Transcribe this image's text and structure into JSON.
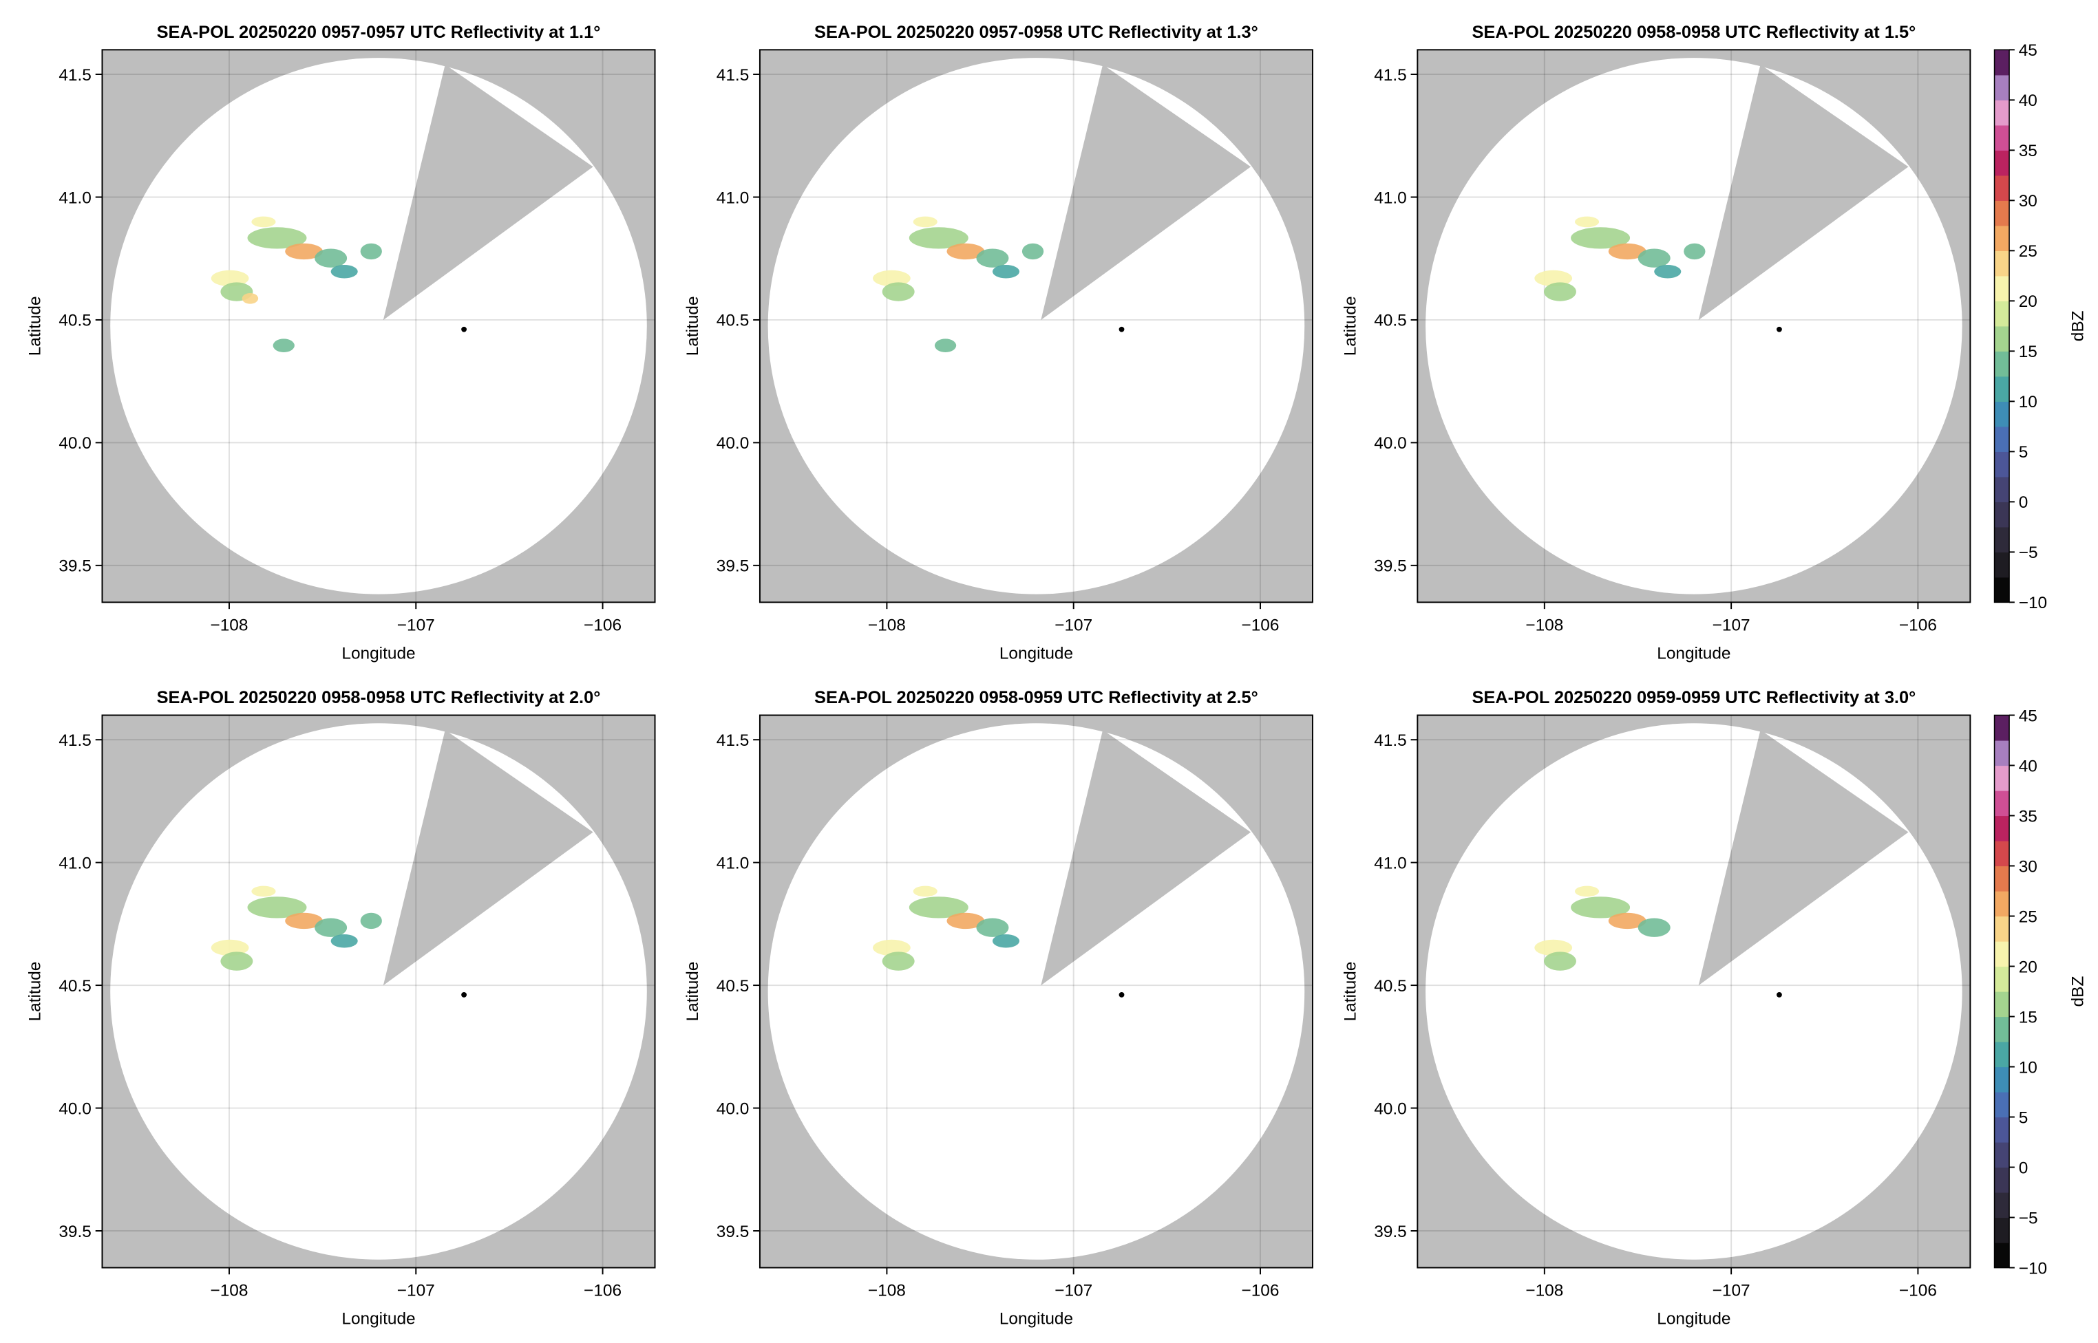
{
  "chart_data": [
    {
      "type": "radar",
      "title": "SEA-POL 20250220 0957-0957 UTC Reflectivity at 1.1°",
      "xlabel": "Longitude",
      "ylabel": "Latitude",
      "xlim": [
        -108.68,
        -105.72
      ],
      "ylim": [
        39.35,
        41.6
      ],
      "xticks": [
        {
          "value": -108,
          "label": "−108"
        },
        {
          "value": -107,
          "label": "−107"
        },
        {
          "value": -106,
          "label": "−106"
        }
      ],
      "yticks": [
        39.5,
        {
          "value": 40,
          "label": "40.0"
        },
        40.5,
        {
          "value": 41,
          "label": "41.0"
        },
        41.5
      ],
      "grid": true
    },
    {
      "type": "radar",
      "title": "SEA-POL 20250220 0957-0958 UTC Reflectivity at 1.3°",
      "xlabel": "Longitude",
      "ylabel": "Latitude",
      "xlim": [
        -108.68,
        -105.72
      ],
      "ylim": [
        39.35,
        41.6
      ],
      "xticks": [
        {
          "value": -108,
          "label": "−108"
        },
        {
          "value": -107,
          "label": "−107"
        },
        {
          "value": -106,
          "label": "−106"
        }
      ],
      "yticks": [
        39.5,
        {
          "value": 40,
          "label": "40.0"
        },
        40.5,
        {
          "value": 41,
          "label": "41.0"
        },
        41.5
      ],
      "grid": true
    },
    {
      "type": "radar",
      "title": "SEA-POL 20250220 0958-0958 UTC Reflectivity at 1.5°",
      "xlabel": "Longitude",
      "ylabel": "Latitude",
      "xlim": [
        -108.68,
        -105.72
      ],
      "ylim": [
        39.35,
        41.6
      ],
      "xticks": [
        {
          "value": -108,
          "label": "−108"
        },
        {
          "value": -107,
          "label": "−107"
        },
        {
          "value": -106,
          "label": "−106"
        }
      ],
      "yticks": [
        39.5,
        {
          "value": 40,
          "label": "40.0"
        },
        40.5,
        {
          "value": 41,
          "label": "41.0"
        },
        41.5
      ],
      "grid": true,
      "colorbar": {
        "label": "dBZ",
        "lim": [
          -10,
          45
        ],
        "ticks": [
          {
            "value": -10,
            "label": "−10"
          },
          {
            "value": -5,
            "label": "−5"
          },
          0,
          5,
          10,
          15,
          20,
          25,
          30,
          35,
          40,
          45
        ],
        "colors": [
          "#080808",
          "#1e1c22",
          "#2e2a3a",
          "#3b3656",
          "#454474",
          "#4c5698",
          "#4a6fb5",
          "#3e8db6",
          "#4aa7a4",
          "#72bd98",
          "#a4d48f",
          "#d4ea9a",
          "#f7f3ad",
          "#f8d488",
          "#f2a862",
          "#e47a4d",
          "#d4484c",
          "#bb2360",
          "#cf4f95",
          "#e49bcb",
          "#a77fbf",
          "#5b1f61"
        ]
      }
    },
    {
      "type": "radar",
      "title": "SEA-POL 20250220 0958-0958 UTC Reflectivity at 2.0°",
      "xlabel": "Longitude",
      "ylabel": "Latitude",
      "xlim": [
        -108.68,
        -105.72
      ],
      "ylim": [
        39.35,
        41.6
      ],
      "xticks": [
        {
          "value": -108,
          "label": "−108"
        },
        {
          "value": -107,
          "label": "−107"
        },
        {
          "value": -106,
          "label": "−106"
        }
      ],
      "yticks": [
        39.5,
        {
          "value": 40,
          "label": "40.0"
        },
        40.5,
        {
          "value": 41,
          "label": "41.0"
        },
        41.5
      ],
      "grid": true
    },
    {
      "type": "radar",
      "title": "SEA-POL 20250220 0958-0959 UTC Reflectivity at 2.5°",
      "xlabel": "Longitude",
      "ylabel": "Latitude",
      "xlim": [
        -108.68,
        -105.72
      ],
      "ylim": [
        39.35,
        41.6
      ],
      "xticks": [
        {
          "value": -108,
          "label": "−108"
        },
        {
          "value": -107,
          "label": "−107"
        },
        {
          "value": -106,
          "label": "−106"
        }
      ],
      "yticks": [
        39.5,
        {
          "value": 40,
          "label": "40.0"
        },
        40.5,
        {
          "value": 41,
          "label": "41.0"
        },
        41.5
      ],
      "grid": true
    },
    {
      "type": "radar",
      "title": "SEA-POL 20250220 0959-0959 UTC Reflectivity at 3.0°",
      "xlabel": "Longitude",
      "ylabel": "Latitude",
      "xlim": [
        -108.68,
        -105.72
      ],
      "ylim": [
        39.35,
        41.6
      ],
      "xticks": [
        {
          "value": -108,
          "label": "−108"
        },
        {
          "value": -107,
          "label": "−107"
        },
        {
          "value": -106,
          "label": "−106"
        }
      ],
      "yticks": [
        39.5,
        {
          "value": 40,
          "label": "40.0"
        },
        40.5,
        {
          "value": 41,
          "label": "41.0"
        },
        41.5
      ],
      "grid": true,
      "colorbar": {
        "label": "dBZ",
        "lim": [
          -10,
          45
        ],
        "ticks": [
          {
            "value": -10,
            "label": "−10"
          },
          {
            "value": -5,
            "label": "−5"
          },
          0,
          5,
          10,
          15,
          20,
          25,
          30,
          35,
          40,
          45
        ],
        "colors": [
          "#080808",
          "#1e1c22",
          "#2e2a3a",
          "#3b3656",
          "#454474",
          "#4c5698",
          "#4a6fb5",
          "#3e8db6",
          "#4aa7a4",
          "#72bd98",
          "#a4d48f",
          "#d4ea9a",
          "#f7f3ad",
          "#f8d488",
          "#f2a862",
          "#e47a4d",
          "#d4484c",
          "#bb2360",
          "#cf4f95",
          "#e49bcb",
          "#a77fbf",
          "#5b1f61"
        ]
      }
    }
  ]
}
